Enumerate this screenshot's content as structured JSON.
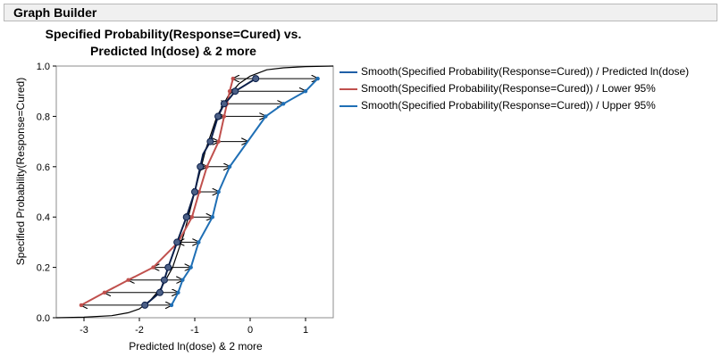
{
  "panel": {
    "title": "Graph Builder"
  },
  "chart_data": {
    "type": "line",
    "title_line1": "Specified Probability(Response=Cured) vs.",
    "title_line2": "Predicted ln(dose) & 2 more",
    "xlabel": "Predicted ln(dose) & 2 more",
    "ylabel": "Specified Probability(Response=Cured)",
    "xlim": [
      -3.5,
      1.5
    ],
    "ylim": [
      0.0,
      1.0
    ],
    "xticks": [
      -3,
      -2,
      -1,
      0,
      1
    ],
    "yticks": [
      0.0,
      0.2,
      0.4,
      0.6,
      0.8,
      1.0
    ],
    "xtick_labels": [
      "-3",
      "-2",
      "-1",
      "0",
      "1"
    ],
    "ytick_labels": [
      "0.0",
      "0.2",
      "0.4",
      "0.6",
      "0.8",
      "1.0"
    ],
    "legend_position": "right",
    "series": [
      {
        "name": "Smooth(Specified Probability(Response=Cured)) / Predicted ln(dose)",
        "color": "#1f5fa6",
        "x": [
          -1.9,
          -1.63,
          -1.55,
          -1.48,
          -1.32,
          -1.15,
          -1.0,
          -0.9,
          -0.85,
          -0.72,
          -0.58,
          -0.47,
          -0.38,
          -0.27,
          0.1
        ],
        "y": [
          0.05,
          0.1,
          0.15,
          0.2,
          0.3,
          0.4,
          0.5,
          0.6,
          0.65,
          0.7,
          0.8,
          0.85,
          0.87,
          0.9,
          0.95
        ]
      },
      {
        "name": "Smooth(Specified Probability(Response=Cured)) / Lower 95%",
        "color": "#c0504d",
        "x": [
          -3.05,
          -2.63,
          -2.2,
          -1.75,
          -1.3,
          -1.05,
          -0.92,
          -0.78,
          -0.57,
          -0.47,
          -0.42,
          -0.37,
          -0.31
        ],
        "y": [
          0.05,
          0.1,
          0.15,
          0.2,
          0.3,
          0.4,
          0.5,
          0.6,
          0.7,
          0.8,
          0.85,
          0.9,
          0.95
        ]
      },
      {
        "name": "Smooth(Specified Probability(Response=Cured)) / Upper 95%",
        "color": "#1f6fb5",
        "x": [
          -1.42,
          -1.3,
          -1.22,
          -1.07,
          -0.93,
          -0.68,
          -0.57,
          -0.37,
          0.28,
          0.6,
          1.0,
          1.22
        ],
        "y": [
          0.05,
          0.1,
          0.15,
          0.2,
          0.3,
          0.4,
          0.5,
          0.6,
          0.8,
          0.85,
          0.9,
          0.95
        ]
      }
    ],
    "fitted_curve": {
      "color": "#000000",
      "x": [
        -3.5,
        -3.0,
        -2.5,
        -2.2,
        -2.0,
        -1.8,
        -1.6,
        -1.4,
        -1.2,
        -1.0,
        -0.8,
        -0.6,
        -0.4,
        -0.2,
        0.0,
        0.3,
        0.6,
        1.0,
        1.5
      ],
      "y": [
        0.0,
        0.002,
        0.008,
        0.02,
        0.035,
        0.07,
        0.12,
        0.2,
        0.33,
        0.5,
        0.67,
        0.8,
        0.88,
        0.93,
        0.96,
        0.985,
        0.993,
        0.998,
        1.0
      ]
    },
    "arrow_levels": [
      0.05,
      0.1,
      0.15,
      0.2,
      0.3,
      0.4,
      0.5,
      0.6,
      0.7,
      0.8,
      0.85,
      0.9,
      0.95
    ],
    "markers": {
      "x": [
        -1.9,
        -1.63,
        -1.55,
        -1.48,
        -1.32,
        -1.15,
        -1.0,
        -0.9,
        -0.72,
        -0.58,
        -0.47,
        -0.27,
        0.1
      ],
      "y": [
        0.05,
        0.1,
        0.15,
        0.2,
        0.3,
        0.4,
        0.5,
        0.6,
        0.7,
        0.8,
        0.85,
        0.9,
        0.95
      ]
    }
  }
}
